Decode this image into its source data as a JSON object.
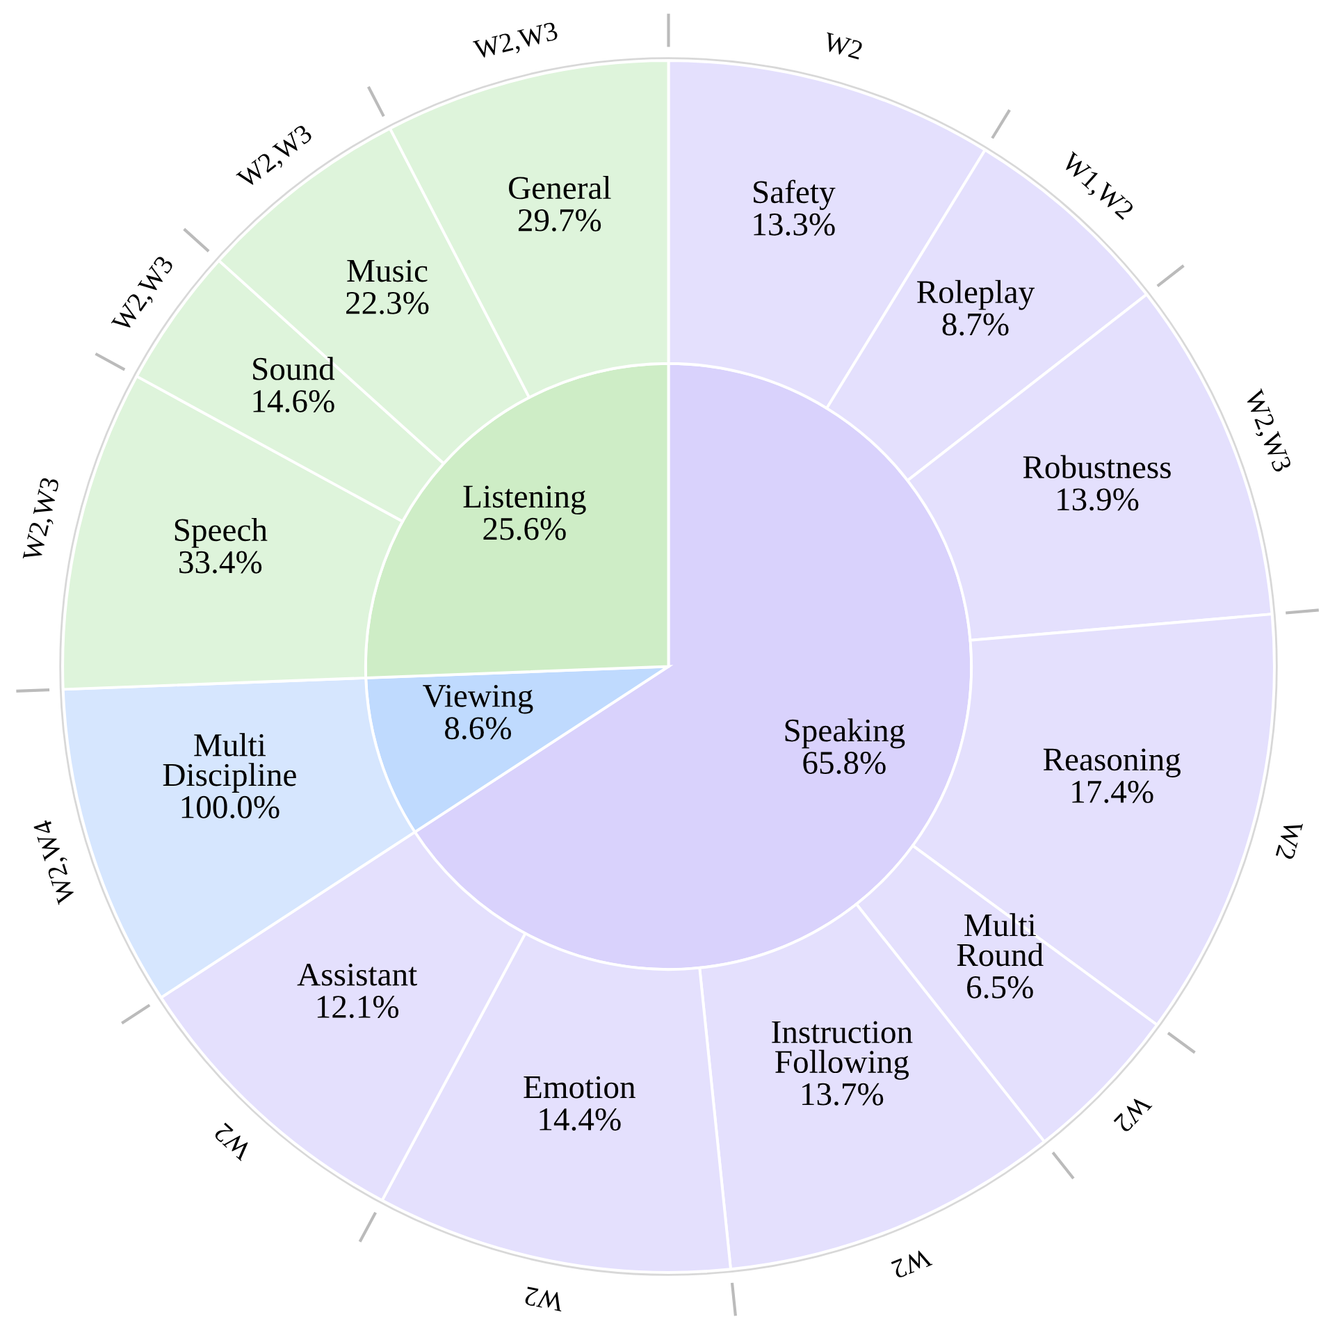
{
  "chart_data": {
    "type": "other",
    "categories": [
      "Speaking",
      "Viewing",
      "Listening",
      "Safety",
      "Roleplay",
      "Robustness",
      "Reasoning",
      "Multi\nRound",
      "Instruction\nFollowing",
      "Emotion",
      "Assistant",
      "Multi\nDiscipline",
      "Speech",
      "Sound",
      "Music",
      "General"
    ],
    "series": [
      {
        "values": [
          65.8,
          8.6,
          25.6,
          null,
          null,
          null,
          null,
          null,
          null,
          null,
          null,
          null,
          null,
          null,
          null,
          null
        ],
        "value_labels": [
          "65.8%",
          "8.6%",
          "25.6%",
          null,
          null,
          null,
          null,
          null,
          null,
          null,
          null,
          null,
          null,
          null,
          null,
          null
        ],
        "colors": [
          "#d9d2fc",
          "#bfdafe",
          "#ceedc6",
          null,
          null,
          null,
          null,
          null,
          null,
          null,
          null,
          null,
          null,
          null,
          null,
          null
        ]
      },
      {
        "values": [
          null,
          null,
          null,
          13.3,
          8.7,
          13.9,
          17.4,
          6.5,
          13.7,
          14.4,
          12.1,
          100.0,
          33.4,
          14.6,
          22.3,
          29.7
        ],
        "value_labels": [
          null,
          null,
          null,
          "13.3%",
          "8.7%",
          "13.9%",
          "17.4%",
          "6.5%",
          "13.7%",
          "14.4%",
          "12.1%",
          "100.0%",
          "33.4%",
          "14.6%",
          "22.3%",
          "29.7%"
        ],
        "colors": [
          null,
          null,
          null,
          "#e4e0fd",
          "#e4e0fd",
          "#e4e0fd",
          "#e4e0fd",
          "#e4e0fd",
          "#e4e0fd",
          "#e4e0fd",
          "#e4e0fd",
          "#d6e6fe",
          "#def4db",
          "#def4db",
          "#def4db",
          "#def4db"
        ]
      }
    ],
    "annotations": [
      "W2",
      "W1,W2",
      "W2,W3",
      "W2",
      "W2",
      "W2",
      "W2",
      "W2",
      "W2,W4",
      "W2,W3",
      "W2,W3",
      "W2,W3",
      "W2,W3"
    ]
  }
}
